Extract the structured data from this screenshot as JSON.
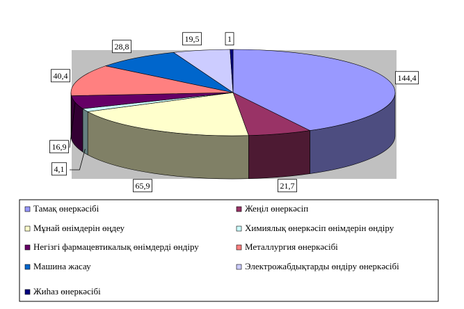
{
  "chart_data": {
    "type": "pie3d",
    "categories": [
      "Тамақ өнеркәсібі",
      "Жеңіл өнеркәсіп",
      "Мұнай өнімдерін өңдеу",
      "Химиялық өнеркәсіп өнімдерін өндіру",
      "Негізгі фармацевтикалық өнімдерді өндіру",
      "Металлургия өнеркәсібі",
      "Машина жасау",
      "Электрожабдықтарды өндіру өнеркәсібі",
      "Жиһаз өнеркәсібі"
    ],
    "values": [
      144.4,
      21.7,
      65.9,
      4.1,
      16.9,
      40.4,
      28.8,
      19.5,
      1
    ],
    "value_labels": [
      "144,4",
      "21,7",
      "65,9",
      "4,1",
      "16,9",
      "40,4",
      "28,8",
      "19,5",
      "1"
    ],
    "colors": [
      "#9999FF",
      "#993366",
      "#FFFFCC",
      "#CCFFFF",
      "#660066",
      "#FF8080",
      "#0066CC",
      "#CCCCFF",
      "#000080"
    ]
  }
}
